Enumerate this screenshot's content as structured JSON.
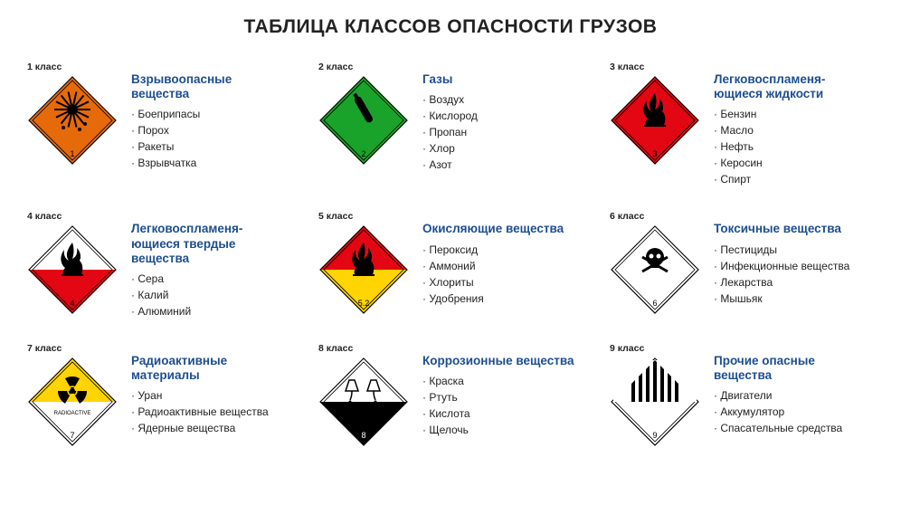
{
  "title": "ТАБЛИЦА КЛАССОВ ОПАСНОСТИ ГРУЗОВ",
  "title_color": "#1d4e8f",
  "palette": {
    "orange": "#e66a0a",
    "green": "#1aa32a",
    "red": "#e30613",
    "white": "#ffffff",
    "yellow": "#ffd400",
    "black": "#000000",
    "stripe_red": "#d33"
  },
  "placard_size": 100,
  "classes": [
    {
      "id": "class1",
      "label": "1 класс",
      "title": "Взрывоопасные вещества",
      "items": [
        "Боеприпасы",
        "Порох",
        "Ракеты",
        "Взрывчатка"
      ],
      "placard": {
        "type": "explosive",
        "top_color": "#e66a0a",
        "bottom_color": "#e66a0a",
        "symbol_color": "#000000",
        "number": "1"
      }
    },
    {
      "id": "class2",
      "label": "2 класс",
      "title": "Газы",
      "items": [
        "Воздух",
        "Кислород",
        "Пропан",
        "Хлор",
        "Азот"
      ],
      "placard": {
        "type": "gas",
        "top_color": "#1aa32a",
        "bottom_color": "#1aa32a",
        "symbol_color": "#000000",
        "number": "2"
      }
    },
    {
      "id": "class3",
      "label": "3 класс",
      "title": "Легковоспламеня-\nющиеся жидкости",
      "items": [
        "Бензин",
        "Масло",
        "Нефть",
        "Керосин",
        "Спирт"
      ],
      "placard": {
        "type": "flame",
        "top_color": "#e30613",
        "bottom_color": "#e30613",
        "symbol_color": "#000000",
        "number": "3"
      }
    },
    {
      "id": "class4",
      "label": "4 класс",
      "title": "Легковоспламеня-\nющиеся твердые вещества",
      "items": [
        "Сера",
        "Калий",
        "Алюминий"
      ],
      "placard": {
        "type": "flame",
        "top_color": "#ffffff",
        "bottom_color": "#e30613",
        "symbol_color": "#000000",
        "number": "4"
      }
    },
    {
      "id": "class5",
      "label": "5 класс",
      "title": "Окисляющие вещества",
      "items": [
        "Пероксид",
        "Аммоний",
        "Хлориты",
        "Удобрения"
      ],
      "placard": {
        "type": "flame",
        "top_color": "#e30613",
        "bottom_color": "#ffd400",
        "symbol_color": "#000000",
        "number": "5.2"
      }
    },
    {
      "id": "class6",
      "label": "6 класс",
      "title": "Токсичные вещества",
      "items": [
        "Пестициды",
        "Инфекционные вещества",
        "Лекарства",
        "Мышьяк"
      ],
      "placard": {
        "type": "skull",
        "top_color": "#ffffff",
        "bottom_color": "#ffffff",
        "symbol_color": "#000000",
        "number": "6"
      }
    },
    {
      "id": "class7",
      "label": "7 класс",
      "title": "Радиоактивные материалы",
      "items": [
        "Уран",
        "Радиоактивные вещества",
        "Ядерные вещества"
      ],
      "placard": {
        "type": "radioactive",
        "top_color": "#ffd400",
        "bottom_color": "#ffffff",
        "symbol_color": "#000000",
        "text": "RADIOACTIVE",
        "number": "7"
      }
    },
    {
      "id": "class8",
      "label": "8 класс",
      "title": "Коррозионные вещества",
      "items": [
        "Краска",
        "Ртуть",
        "Кислота",
        "Щелочь"
      ],
      "placard": {
        "type": "corrosive",
        "top_color": "#ffffff",
        "bottom_color": "#000000",
        "symbol_color": "#000000",
        "number": "8",
        "number_color": "#ffffff"
      }
    },
    {
      "id": "class9",
      "label": "9 класс",
      "title": "Прочие опасные вещества",
      "items": [
        "Двигатели",
        "Аккумулятор",
        "Спасательные средства"
      ],
      "placard": {
        "type": "stripes",
        "top_color": "#ffffff",
        "bottom_color": "#ffffff",
        "symbol_color": "#000000",
        "number": "9"
      }
    }
  ]
}
